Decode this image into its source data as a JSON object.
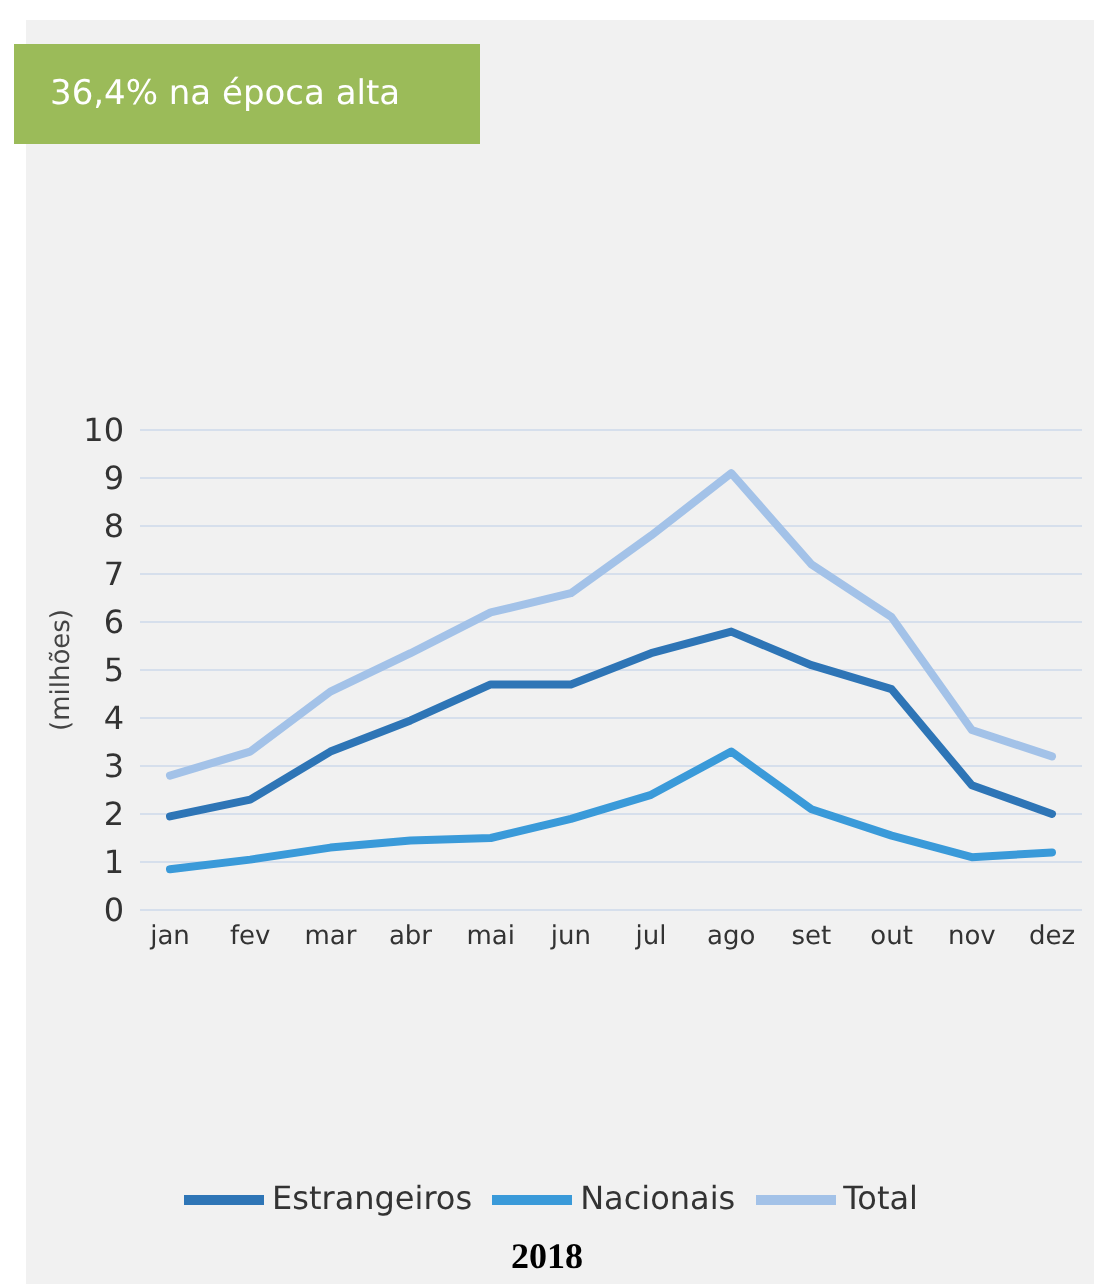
{
  "chart_data": {
    "type": "line",
    "title": "36,4% na época alta",
    "ylabel": "(milhões)",
    "annotations": [
      "2018"
    ],
    "categories": [
      "jan",
      "fev",
      "mar",
      "abr",
      "mai",
      "jun",
      "jul",
      "ago",
      "set",
      "out",
      "nov",
      "dez"
    ],
    "series": [
      {
        "name": "Estrangeiros",
        "color": "#2e75b6",
        "values": [
          1.95,
          2.3,
          3.3,
          3.95,
          4.7,
          4.7,
          5.35,
          5.8,
          5.1,
          4.6,
          2.6,
          2.0
        ]
      },
      {
        "name": "Nacionais",
        "color": "#3a9ad9",
        "values": [
          0.85,
          1.05,
          1.3,
          1.45,
          1.5,
          1.9,
          2.4,
          3.3,
          2.1,
          1.55,
          1.1,
          1.2
        ]
      },
      {
        "name": "Total",
        "color": "#a3c2e8",
        "values": [
          2.8,
          3.3,
          4.55,
          5.35,
          6.2,
          6.6,
          7.8,
          9.1,
          7.2,
          6.1,
          3.75,
          3.2
        ]
      }
    ],
    "ylim": [
      0,
      10
    ],
    "yticks": [
      0,
      1,
      2,
      3,
      4,
      5,
      6,
      7,
      8,
      9,
      10
    ],
    "grid": "y",
    "legend": "bottom",
    "marker": "none",
    "line_style": "solid"
  }
}
